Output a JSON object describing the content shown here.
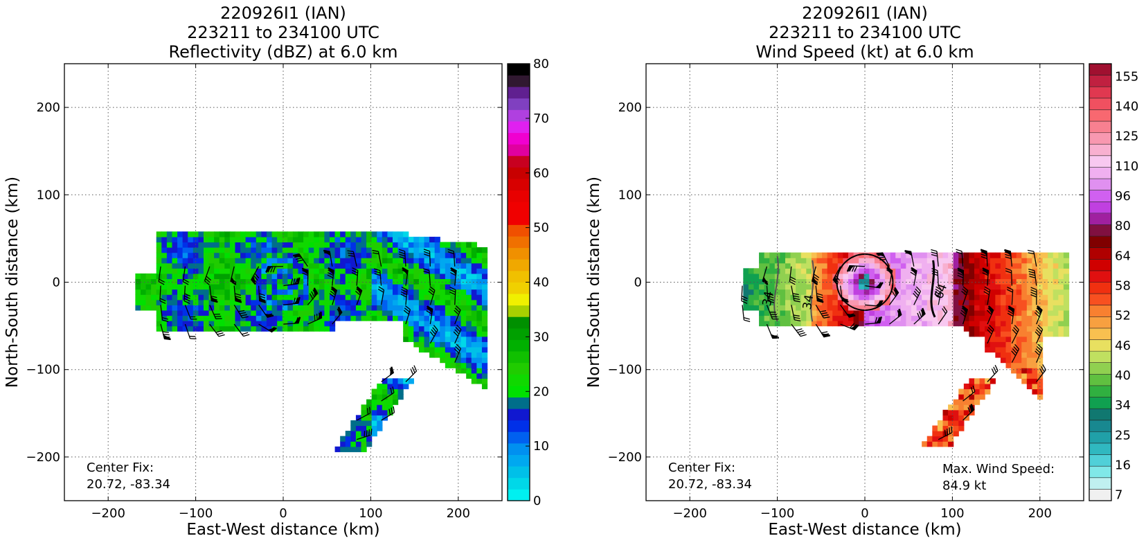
{
  "chart_data": [
    {
      "type": "heatmap",
      "title": [
        "220926I1 (IAN)",
        "223211 to 234100 UTC",
        "Reflectivity (dBZ) at 6.0 km"
      ],
      "xlabel": "East-West distance (km)",
      "ylabel": "North-South distance (km)",
      "xlim": [
        -250,
        250
      ],
      "ylim": [
        -250,
        250
      ],
      "x_ticks": [
        -200,
        -100,
        0,
        100,
        200
      ],
      "y_ticks": [
        -200,
        -100,
        0,
        100,
        200
      ],
      "grid": true,
      "colorbar": {
        "range": [
          0,
          80
        ],
        "ticks": [
          0,
          10,
          20,
          30,
          40,
          50,
          60,
          70,
          80
        ],
        "colors": [
          "#00f0f0",
          "#00d8e8",
          "#00c0e8",
          "#00a8f0",
          "#0090f0",
          "#0060f0",
          "#0030e8",
          "#1018d0",
          "#006e8a",
          "#00e000",
          "#10d800",
          "#20cc00",
          "#10c000",
          "#00b000",
          "#00a000",
          "#009000",
          "#a8d000",
          "#f0f000",
          "#f0d000",
          "#f0c000",
          "#f0a800",
          "#f09000",
          "#f07000",
          "#f05000",
          "#f00000",
          "#f00000",
          "#e80000",
          "#d80000",
          "#c80000",
          "#c80020",
          "#e000a0",
          "#f000d0",
          "#e020f0",
          "#b040e0",
          "#8040c0",
          "#602090",
          "#301830",
          "#000000"
        ]
      },
      "annotations": [
        {
          "label": "Center Fix:",
          "value": "20.72, -83.34"
        }
      ],
      "data_region_km": {
        "x": [
          -170,
          230
        ],
        "y": [
          -195,
          55
        ]
      }
    },
    {
      "type": "heatmap",
      "title": [
        "220926I1 (IAN)",
        "223211 to 234100 UTC",
        "Wind Speed (kt) at 6.0 km"
      ],
      "xlabel": "East-West distance (km)",
      "ylabel": "North-South distance (km)",
      "xlim": [
        -250,
        250
      ],
      "ylim": [
        -250,
        250
      ],
      "x_ticks": [
        -200,
        -100,
        0,
        100,
        200
      ],
      "y_ticks": [
        -200,
        -100,
        0,
        100,
        200
      ],
      "grid": true,
      "contours": [
        {
          "level": 34
        },
        {
          "level": 64
        }
      ],
      "colorbar": {
        "tick_labels": [
          "7",
          "16",
          "25",
          "34",
          "40",
          "46",
          "52",
          "58",
          "64",
          "80",
          "96",
          "110",
          "125",
          "140",
          "155"
        ],
        "colors": [
          "#f0f0f0",
          "#c0f0f0",
          "#80e8e8",
          "#50d0d8",
          "#30b8c0",
          "#20a0a8",
          "#188890",
          "#107870",
          "#10a050",
          "#30b040",
          "#60c040",
          "#90d050",
          "#c0e060",
          "#e8e060",
          "#f8c050",
          "#f8a040",
          "#f88030",
          "#f85020",
          "#f03010",
          "#e01010",
          "#d00000",
          "#b00000",
          "#800000",
          "#801040",
          "#a020a0",
          "#c040e0",
          "#d060f0",
          "#e090f0",
          "#f0b0f0",
          "#f8c8f0",
          "#f8b0d0",
          "#f898b0",
          "#f88090",
          "#f86870",
          "#f05060",
          "#e03850",
          "#c02040",
          "#a01030"
        ]
      },
      "annotations": [
        {
          "label": "Center Fix:",
          "value": "20.72, -83.34"
        },
        {
          "label": "Max. Wind Speed:",
          "value": "84.9 kt"
        }
      ],
      "data_region_km": {
        "x": [
          -140,
          230
        ],
        "y": [
          -185,
          35
        ]
      }
    }
  ]
}
